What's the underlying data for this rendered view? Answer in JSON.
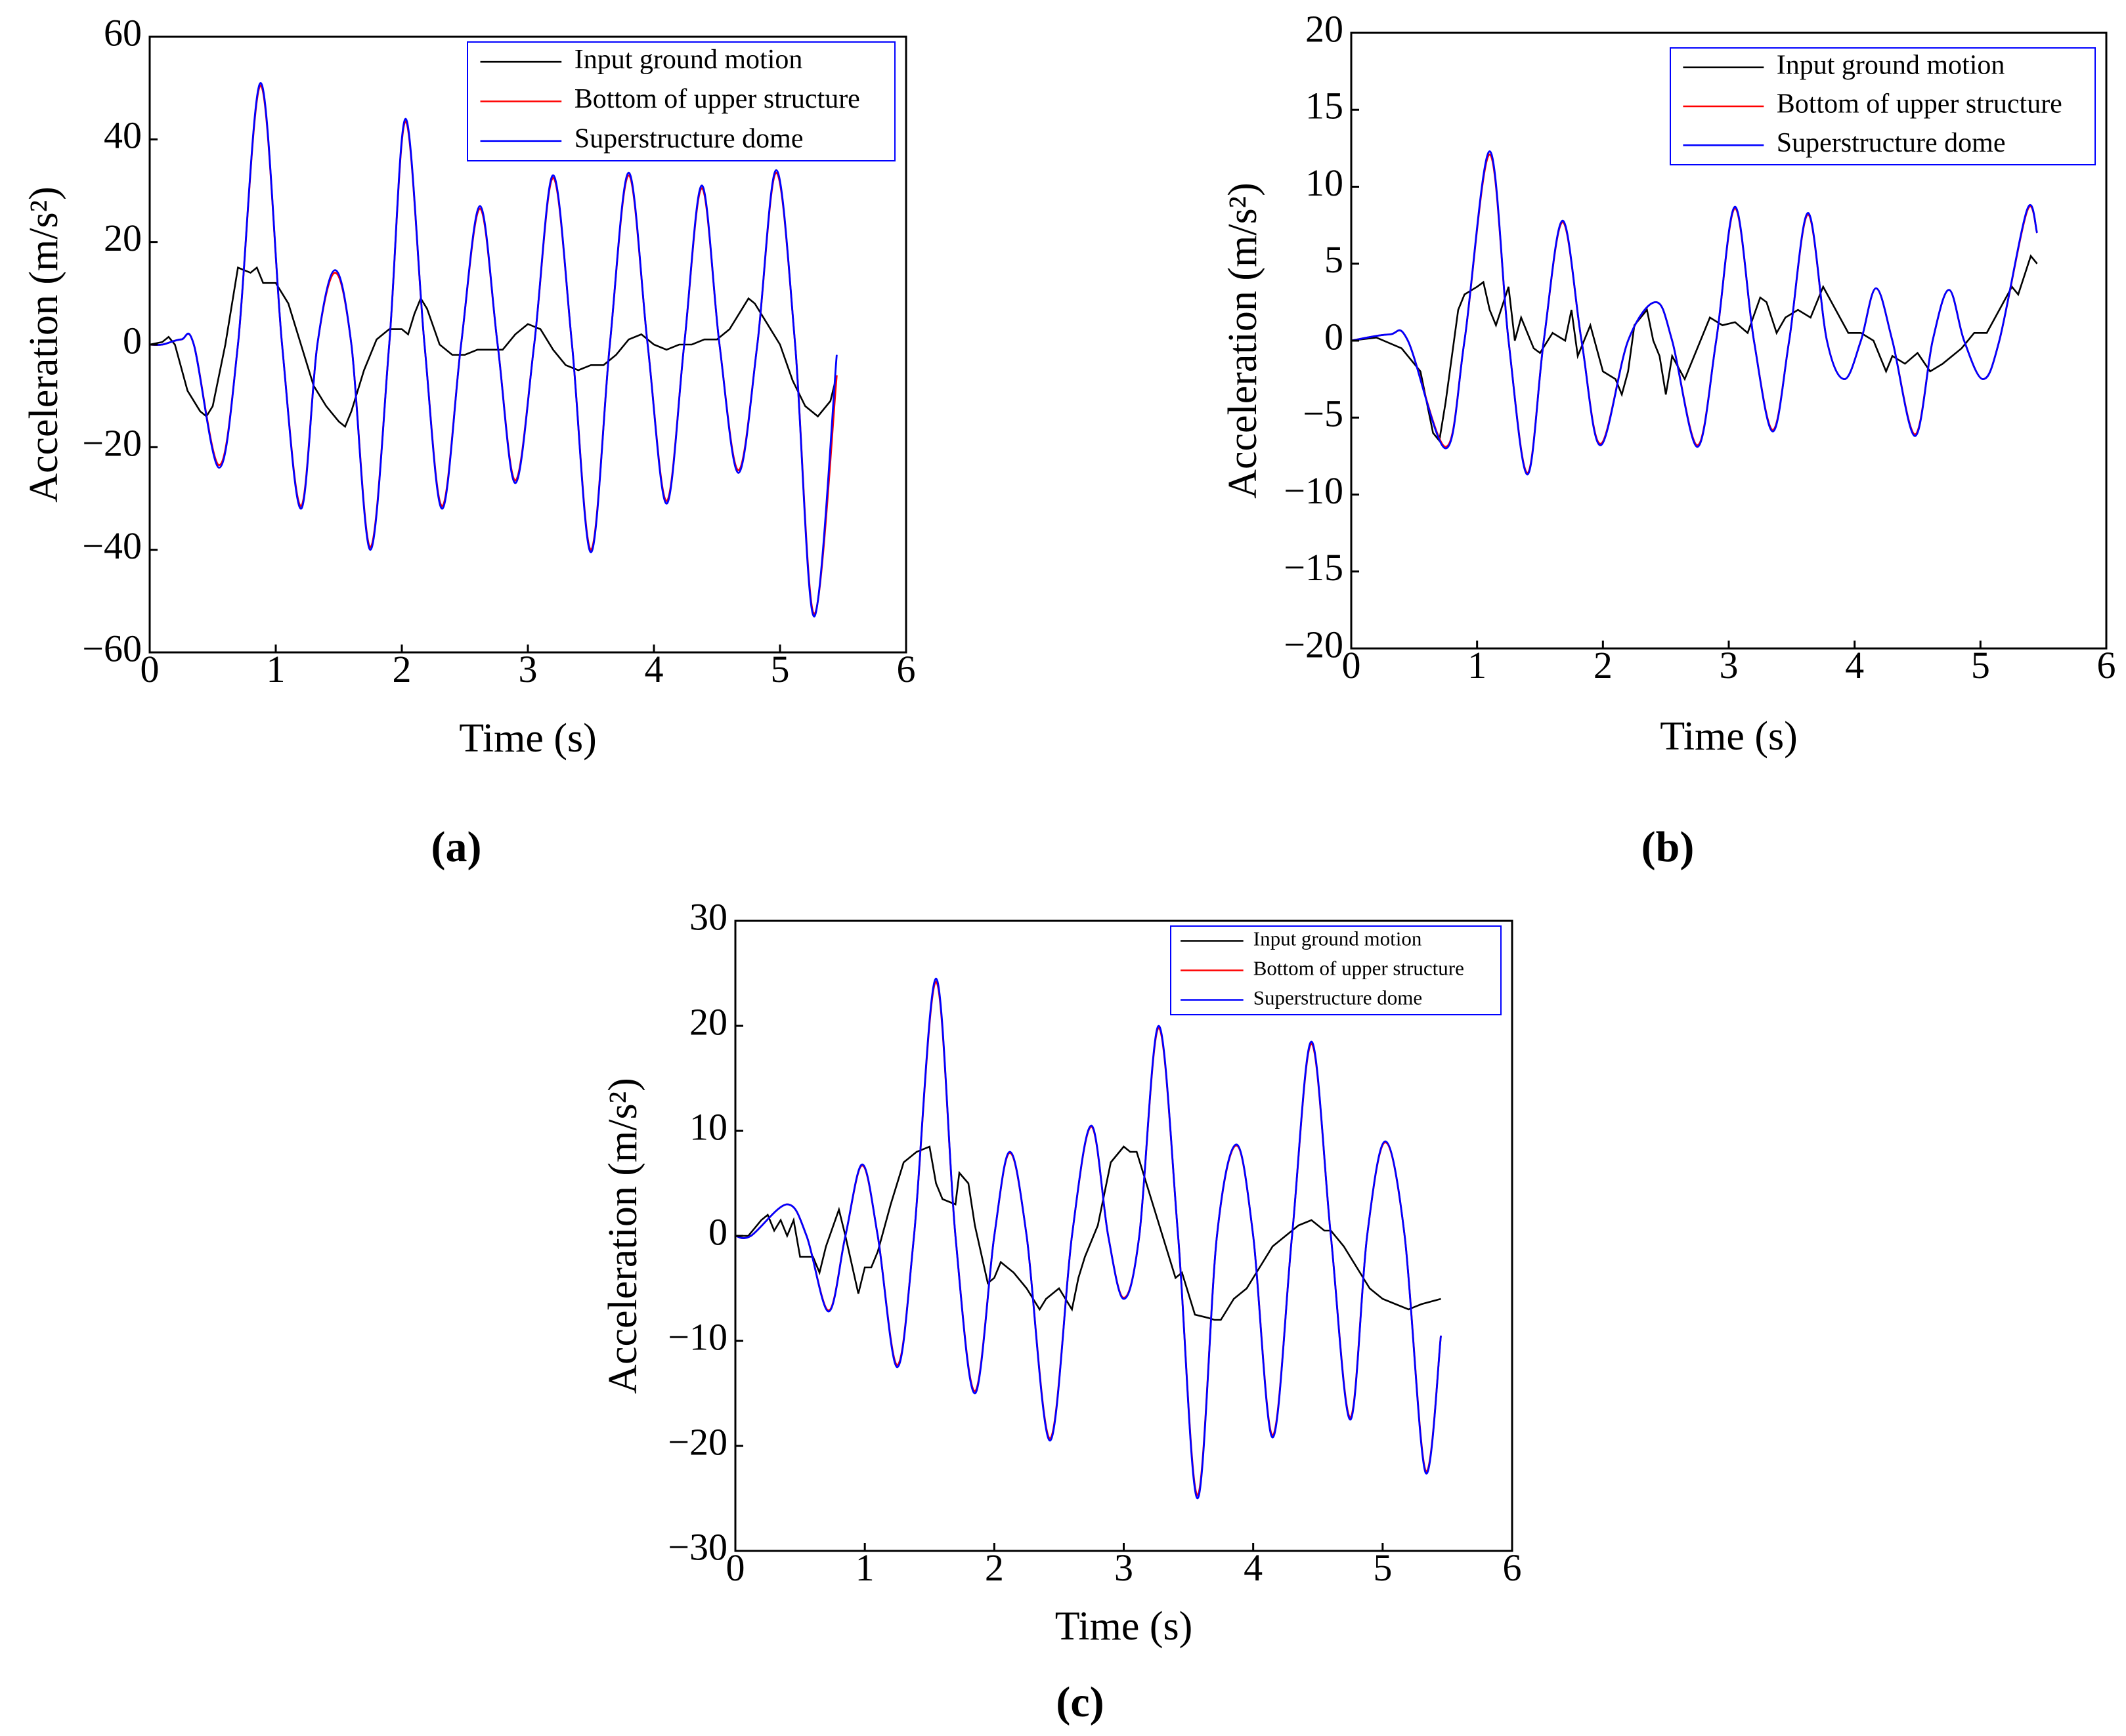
{
  "chart_data": [
    {
      "type": "line",
      "label": "(a)",
      "xlabel": "Time (s)",
      "ylabel": "Acceleration (m/s²)",
      "xlim": [
        0,
        6
      ],
      "ylim": [
        -60,
        60
      ],
      "xticks": [
        0,
        1,
        2,
        3,
        4,
        5,
        6
      ],
      "yticks": [
        {
          "value": -60,
          "label": "−60"
        },
        {
          "value": -40,
          "label": "−40"
        },
        {
          "value": -20,
          "label": "−20"
        },
        0,
        20,
        40,
        60
      ],
      "legend": "upper right",
      "series": [
        {
          "name": "Input ground motion",
          "color": "#000000",
          "smooth": false,
          "x": [
            0,
            0.1,
            0.15,
            0.2,
            0.3,
            0.4,
            0.45,
            0.5,
            0.6,
            0.7,
            0.8,
            0.85,
            0.9,
            1.0,
            1.1,
            1.2,
            1.3,
            1.4,
            1.5,
            1.55,
            1.6,
            1.7,
            1.8,
            1.9,
            2.0,
            2.05,
            2.1,
            2.15,
            2.2,
            2.3,
            2.4,
            2.5,
            2.6,
            2.7,
            2.8,
            2.9,
            3.0,
            3.1,
            3.2,
            3.3,
            3.4,
            3.5,
            3.6,
            3.7,
            3.8,
            3.9,
            4.0,
            4.1,
            4.2,
            4.3,
            4.4,
            4.5,
            4.6,
            4.7,
            4.75,
            4.8,
            4.9,
            5.0,
            5.1,
            5.2,
            5.3,
            5.4,
            5.45
          ],
          "values": [
            0,
            0.5,
            1.5,
            0,
            -9,
            -13,
            -14,
            -12,
            0,
            15,
            14,
            15,
            12,
            12,
            8,
            0,
            -8,
            -12,
            -15,
            -16,
            -13,
            -5,
            1,
            3,
            3,
            2,
            6,
            9,
            7,
            0,
            -2,
            -2,
            -1,
            -1,
            -1,
            2,
            4,
            3,
            -1,
            -4,
            -5,
            -4,
            -4,
            -2,
            1,
            2,
            0,
            -1,
            0,
            0,
            1,
            1,
            3,
            7,
            9,
            8,
            4,
            0,
            -7,
            -12,
            -14,
            -11,
            -6
          ]
        },
        {
          "name": "Bottom of upper structure",
          "color": "#ff0000",
          "smooth": true,
          "x": [
            0,
            0.1,
            0.25,
            0.35,
            0.55,
            0.7,
            0.88,
            1.05,
            1.2,
            1.33,
            1.47,
            1.6,
            1.75,
            1.9,
            2.03,
            2.18,
            2.32,
            2.47,
            2.62,
            2.76,
            2.9,
            3.05,
            3.2,
            3.35,
            3.5,
            3.65,
            3.8,
            3.95,
            4.1,
            4.24,
            4.38,
            4.52,
            4.67,
            4.82,
            4.97,
            5.12,
            5.27,
            5.45
          ],
          "values": [
            0,
            0,
            1,
            0,
            -23.5,
            0,
            50.5,
            0,
            -31.5,
            0,
            14,
            0,
            -39.5,
            0,
            43.5,
            0,
            -31.5,
            0,
            26.5,
            0,
            -26.5,
            0,
            32.5,
            0,
            -40,
            0,
            33,
            0,
            -30.5,
            0,
            30.5,
            0,
            -24.5,
            0,
            33.5,
            0,
            -52.5,
            -6
          ]
        },
        {
          "name": "Superstructure dome",
          "color": "#0000ff",
          "smooth": true,
          "x": [
            0,
            0.1,
            0.25,
            0.35,
            0.55,
            0.7,
            0.88,
            1.05,
            1.2,
            1.33,
            1.47,
            1.6,
            1.75,
            1.9,
            2.03,
            2.18,
            2.32,
            2.47,
            2.62,
            2.76,
            2.9,
            3.05,
            3.2,
            3.35,
            3.5,
            3.65,
            3.8,
            3.95,
            4.1,
            4.24,
            4.38,
            4.52,
            4.67,
            4.82,
            4.97,
            5.12,
            5.27,
            5.45
          ],
          "values": [
            0,
            0,
            1,
            0,
            -24,
            0,
            51,
            0,
            -32,
            0,
            14.5,
            0,
            -40,
            0,
            44,
            0,
            -32,
            0,
            27,
            0,
            -27,
            0,
            33,
            0,
            -40.5,
            0,
            33.5,
            0,
            -31,
            0,
            31,
            0,
            -25,
            0,
            34,
            0,
            -53,
            -2
          ]
        }
      ]
    },
    {
      "type": "line",
      "label": "(b)",
      "xlabel": "Time (s)",
      "ylabel": "Acceleration (m/s²)",
      "xlim": [
        0,
        6
      ],
      "ylim": [
        -20,
        20
      ],
      "xticks": [
        0,
        1,
        2,
        3,
        4,
        5,
        6
      ],
      "yticks": [
        {
          "value": -20,
          "label": "−20"
        },
        {
          "value": -15,
          "label": "−15"
        },
        {
          "value": -10,
          "label": "−10"
        },
        {
          "value": -5,
          "label": "−5"
        },
        0,
        5,
        10,
        15,
        20
      ],
      "legend": "upper right",
      "series": [
        {
          "name": "Input ground motion",
          "color": "#000000",
          "smooth": false,
          "x": [
            0,
            0.2,
            0.4,
            0.55,
            0.65,
            0.7,
            0.75,
            0.85,
            0.9,
            1.0,
            1.05,
            1.1,
            1.15,
            1.25,
            1.3,
            1.35,
            1.45,
            1.5,
            1.6,
            1.7,
            1.75,
            1.8,
            1.9,
            2.0,
            2.1,
            2.15,
            2.2,
            2.25,
            2.35,
            2.4,
            2.45,
            2.5,
            2.55,
            2.65,
            2.75,
            2.85,
            2.95,
            3.05,
            3.15,
            3.25,
            3.3,
            3.38,
            3.45,
            3.55,
            3.65,
            3.75,
            3.85,
            3.95,
            4.05,
            4.15,
            4.25,
            4.3,
            4.4,
            4.5,
            4.6,
            4.7,
            4.85,
            4.95,
            5.05,
            5.15,
            5.25,
            5.3,
            5.4,
            5.45
          ],
          "values": [
            0,
            0.2,
            -0.5,
            -2,
            -6,
            -6.5,
            -4,
            2,
            3,
            3.5,
            3.8,
            2,
            1,
            3.5,
            0,
            1.5,
            -0.5,
            -0.8,
            0.5,
            0,
            2,
            -1,
            1,
            -2,
            -2.5,
            -3.5,
            -2,
            1,
            2,
            0,
            -1,
            -3.5,
            -1,
            -2.5,
            -0.5,
            1.5,
            1,
            1.2,
            0.5,
            2.8,
            2.5,
            0.5,
            1.5,
            2,
            1.5,
            3.5,
            2,
            0.5,
            0.5,
            0,
            -2,
            -1,
            -1.5,
            -0.8,
            -2,
            -1.5,
            -0.5,
            0.5,
            0.5,
            2,
            3.5,
            3,
            5.5,
            5
          ]
        },
        {
          "name": "Bottom of upper structure",
          "color": "#ff0000",
          "smooth": true,
          "x": [
            0,
            0.3,
            0.45,
            0.75,
            0.9,
            1.1,
            1.25,
            1.4,
            1.53,
            1.68,
            1.83,
            1.98,
            2.2,
            2.42,
            2.55,
            2.75,
            2.9,
            3.05,
            3.2,
            3.35,
            3.48,
            3.63,
            3.78,
            3.92,
            4.05,
            4.17,
            4.3,
            4.48,
            4.62,
            4.75,
            4.87,
            5.02,
            5.15,
            5.37,
            5.45
          ],
          "values": [
            0,
            0.4,
            0,
            -6.9,
            0,
            12.1,
            0,
            -8.6,
            0,
            7.7,
            0,
            -6.7,
            0,
            2.5,
            0,
            -6.8,
            0,
            8.6,
            0,
            -5.8,
            0,
            8.2,
            0,
            -2.5,
            0,
            3.4,
            0,
            -6.1,
            0,
            3.3,
            0,
            -2.5,
            0,
            8.4,
            7
          ]
        },
        {
          "name": "Superstructure dome",
          "color": "#0000ff",
          "smooth": true,
          "x": [
            0,
            0.3,
            0.45,
            0.75,
            0.9,
            1.1,
            1.25,
            1.4,
            1.53,
            1.68,
            1.83,
            1.98,
            2.2,
            2.42,
            2.55,
            2.75,
            2.9,
            3.05,
            3.2,
            3.35,
            3.48,
            3.63,
            3.78,
            3.92,
            4.05,
            4.17,
            4.3,
            4.48,
            4.62,
            4.75,
            4.87,
            5.02,
            5.15,
            5.37,
            5.45
          ],
          "values": [
            0,
            0.4,
            0,
            -7,
            0,
            12.3,
            0,
            -8.7,
            0,
            7.8,
            0,
            -6.8,
            0,
            2.5,
            0,
            -6.9,
            0,
            8.7,
            0,
            -5.9,
            0,
            8.3,
            0,
            -2.5,
            0,
            3.4,
            0,
            -6.2,
            0,
            3.3,
            0,
            -2.5,
            0,
            8.5,
            7
          ]
        }
      ]
    },
    {
      "type": "line",
      "label": "(c)",
      "xlabel": "Time (s)",
      "ylabel": "Acceleration (m/s²)",
      "xlim": [
        0,
        6
      ],
      "ylim": [
        -30,
        30
      ],
      "xticks": [
        0,
        1,
        2,
        3,
        4,
        5,
        6
      ],
      "yticks": [
        {
          "value": -30,
          "label": "−30"
        },
        {
          "value": -20,
          "label": "−20"
        },
        {
          "value": -10,
          "label": "−10"
        },
        0,
        10,
        20,
        30
      ],
      "legend": "upper right",
      "series": [
        {
          "name": "Input ground motion",
          "color": "#000000",
          "smooth": false,
          "x": [
            0,
            0.1,
            0.2,
            0.25,
            0.3,
            0.35,
            0.4,
            0.45,
            0.5,
            0.6,
            0.65,
            0.7,
            0.8,
            0.85,
            0.95,
            1.0,
            1.05,
            1.1,
            1.2,
            1.3,
            1.4,
            1.5,
            1.55,
            1.6,
            1.7,
            1.73,
            1.8,
            1.85,
            1.95,
            2.0,
            2.05,
            2.15,
            2.25,
            2.35,
            2.4,
            2.5,
            2.6,
            2.65,
            2.7,
            2.8,
            2.9,
            3.0,
            3.05,
            3.1,
            3.2,
            3.3,
            3.4,
            3.45,
            3.55,
            3.65,
            3.7,
            3.75,
            3.85,
            3.95,
            4.05,
            4.15,
            4.25,
            4.35,
            4.45,
            4.55,
            4.6,
            4.7,
            4.8,
            4.9,
            5.0,
            5.1,
            5.2,
            5.3,
            5.45
          ],
          "values": [
            0,
            0,
            1.5,
            2,
            0.5,
            1.5,
            0,
            1.5,
            -2,
            -2,
            -3.5,
            -1,
            2.5,
            0,
            -5.5,
            -3,
            -3,
            -1.5,
            3,
            7,
            8,
            8.5,
            5,
            3.5,
            3,
            6,
            5,
            1,
            -4.5,
            -4,
            -2.5,
            -3.5,
            -5,
            -7,
            -6,
            -5,
            -7,
            -4,
            -2,
            1,
            7,
            8.5,
            8,
            8,
            4,
            0,
            -4,
            -3.5,
            -7.5,
            -7.8,
            -8,
            -8,
            -6,
            -5,
            -3,
            -1,
            0,
            1,
            1.5,
            0.5,
            0.5,
            -1,
            -3,
            -5,
            -6,
            -6.5,
            -7,
            -6.5,
            -6
          ]
        },
        {
          "name": "Bottom of upper structure",
          "color": "#ff0000",
          "smooth": true,
          "x": [
            0,
            0.12,
            0.4,
            0.55,
            0.72,
            0.85,
            0.98,
            1.1,
            1.25,
            1.38,
            1.55,
            1.7,
            1.85,
            2.0,
            2.12,
            2.25,
            2.43,
            2.6,
            2.75,
            2.88,
            3.0,
            3.12,
            3.27,
            3.42,
            3.57,
            3.72,
            3.87,
            4.0,
            4.15,
            4.3,
            4.45,
            4.6,
            4.75,
            4.88,
            5.02,
            5.17,
            5.33,
            5.45
          ],
          "values": [
            0,
            0,
            3,
            0,
            -7.1,
            0,
            6.7,
            0,
            -12.3,
            0,
            24.2,
            0,
            -14.8,
            0,
            7.9,
            0,
            -19.3,
            0,
            10.4,
            0,
            -5.9,
            0,
            19.8,
            0,
            -24.7,
            0,
            8.6,
            0,
            -19,
            0,
            18.3,
            0,
            -17.3,
            0,
            8.9,
            0,
            -22.3,
            -9.5
          ]
        },
        {
          "name": "Superstructure dome",
          "color": "#0000ff",
          "smooth": true,
          "x": [
            0,
            0.12,
            0.4,
            0.55,
            0.72,
            0.85,
            0.98,
            1.1,
            1.25,
            1.38,
            1.55,
            1.7,
            1.85,
            2.0,
            2.12,
            2.25,
            2.43,
            2.6,
            2.75,
            2.88,
            3.0,
            3.12,
            3.27,
            3.42,
            3.57,
            3.72,
            3.87,
            4.0,
            4.15,
            4.3,
            4.45,
            4.6,
            4.75,
            4.88,
            5.02,
            5.17,
            5.33,
            5.45
          ],
          "values": [
            0,
            0,
            3,
            0,
            -7.2,
            0,
            6.8,
            0,
            -12.5,
            0,
            24.5,
            0,
            -15,
            0,
            8,
            0,
            -19.5,
            0,
            10.5,
            0,
            -6,
            0,
            20,
            0,
            -25,
            0,
            8.7,
            0,
            -19.2,
            0,
            18.5,
            0,
            -17.5,
            0,
            9,
            0,
            -22.5,
            -9.5
          ]
        }
      ]
    }
  ]
}
